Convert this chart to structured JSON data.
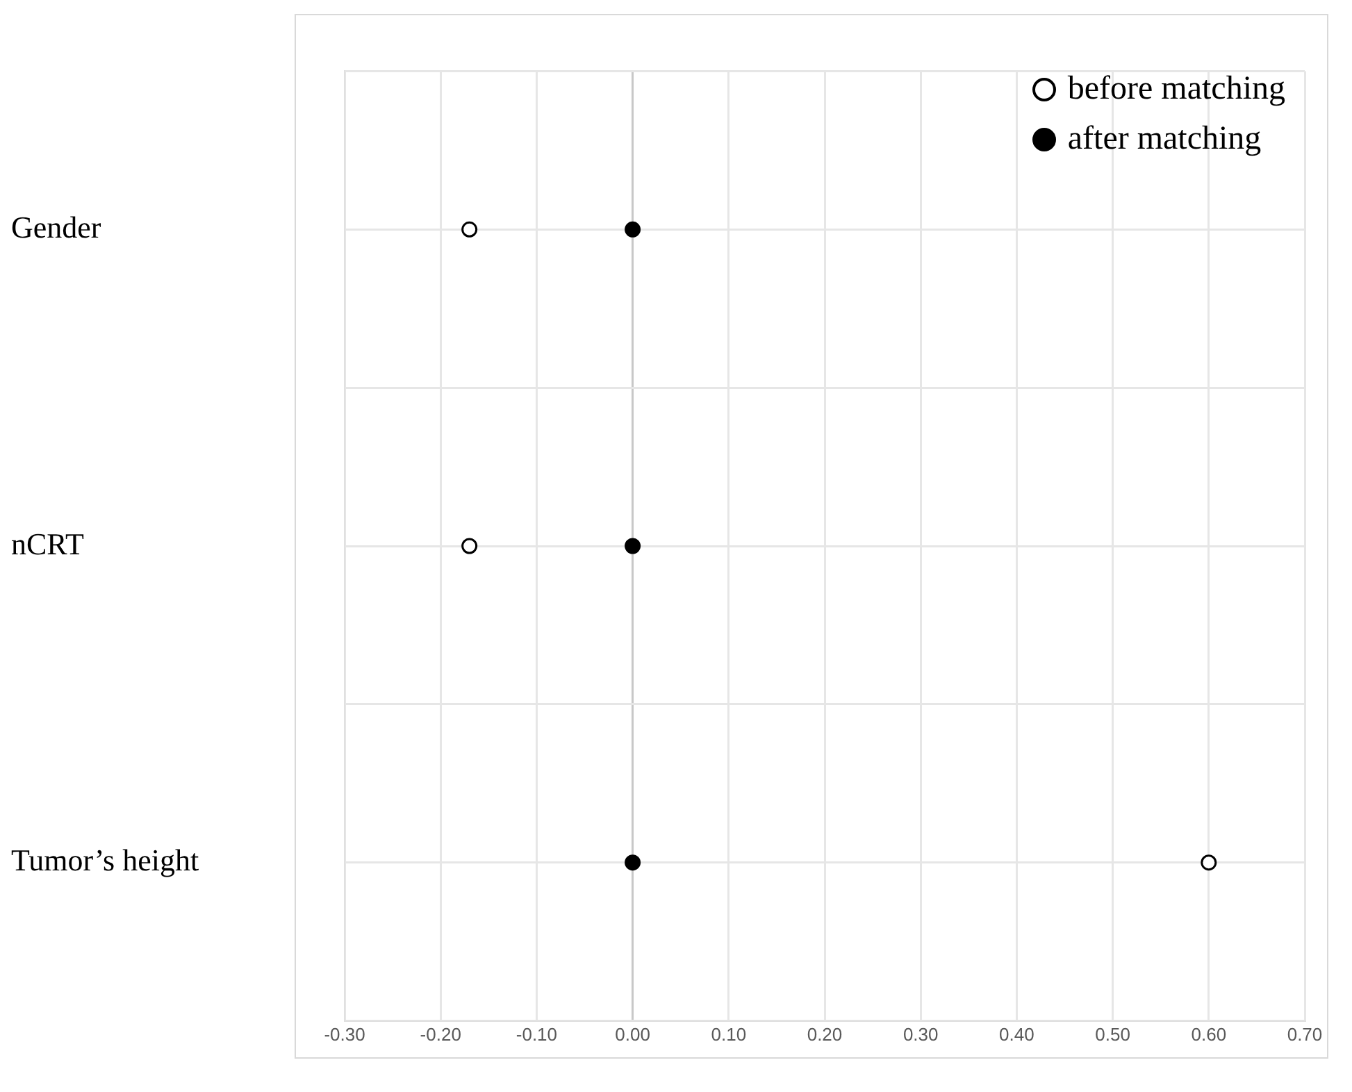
{
  "chart_data": {
    "type": "scatter",
    "orientation": "horizontal",
    "categories": [
      "Gender",
      "nCRT",
      "Tumor’s height"
    ],
    "series": [
      {
        "name": "before matching",
        "color": "#000000",
        "values": [
          -0.17,
          -0.17,
          0.6
        ]
      },
      {
        "name": "after matching",
        "color": "#000000",
        "values": [
          0,
          0,
          0
        ]
      }
    ],
    "xlim": [
      -0.3,
      0.7
    ],
    "xticks": [
      {
        "value": -0.3,
        "label": "-0.30"
      },
      {
        "value": -0.2,
        "label": "-0.20"
      },
      {
        "value": -0.1,
        "label": "-0.10"
      },
      {
        "value": 0,
        "label": "0.00"
      },
      {
        "value": 0.1,
        "label": "0.10"
      },
      {
        "value": 0.2,
        "label": "0.20"
      },
      {
        "value": 0.3,
        "label": "0.30"
      },
      {
        "value": 0.4,
        "label": "0.40"
      },
      {
        "value": 0.5,
        "label": "0.50"
      },
      {
        "value": 0.6,
        "label": "0.60"
      },
      {
        "value": 0.7,
        "label": "0.70"
      }
    ],
    "grid": true,
    "legend": "top right",
    "marker": "circle"
  }
}
